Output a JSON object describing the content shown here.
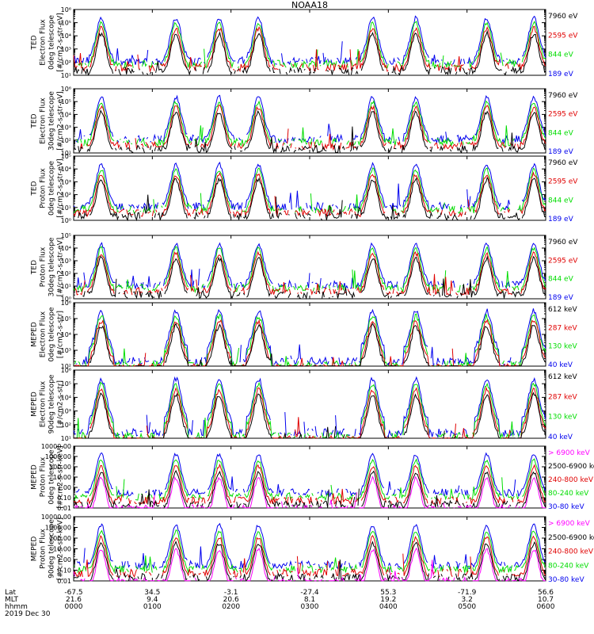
{
  "chart_data": {
    "type": "line",
    "title": "NOAA18",
    "date_label": "2019 Dec 30",
    "time_axis": {
      "rows": [
        {
          "label": "Lat",
          "values": [
            "-67.5",
            "34.5",
            "-3.1",
            "-27.4",
            "55.3",
            "-71.9",
            "56.6"
          ]
        },
        {
          "label": "MLT",
          "values": [
            "21.6",
            "9.4",
            "20.6",
            "8.1",
            "19.2",
            "3.2",
            "10.7"
          ]
        },
        {
          "label": "hhmm",
          "values": [
            "0000",
            "0100",
            "0200",
            "0300",
            "0400",
            "0500",
            "0600"
          ]
        }
      ],
      "range_hours": [
        0,
        6
      ]
    },
    "panels": [
      {
        "ylabel": [
          "TED",
          "Electron Flux",
          "0deg telescope",
          "[#/cm2-s-str-eV]"
        ],
        "scale": "log",
        "ylim": [
          10,
          1000000
        ],
        "ticks": [
          "10¹",
          "10²",
          "10³",
          "10⁴",
          "10⁵",
          "10⁶"
        ],
        "series": [
          {
            "name": "7960 eV",
            "color": "#000000"
          },
          {
            "name": "2595 eV",
            "color": "#e00000"
          },
          {
            "name": "844 eV",
            "color": "#00dd00"
          },
          {
            "name": "189 eV",
            "color": "#0000ee"
          }
        ]
      },
      {
        "ylabel": [
          "TED",
          "Electron Flux",
          "30deg telescope",
          "[#/cm2-s-str-eV]"
        ],
        "scale": "log",
        "ylim": [
          10,
          1000000
        ],
        "ticks": [
          "10¹",
          "10²",
          "10³",
          "10⁴",
          "10⁵",
          "10⁶"
        ],
        "series": [
          {
            "name": "7960 eV",
            "color": "#000000"
          },
          {
            "name": "2595 eV",
            "color": "#e00000"
          },
          {
            "name": "844 eV",
            "color": "#00dd00"
          },
          {
            "name": "189 eV",
            "color": "#0000ee"
          }
        ]
      },
      {
        "ylabel": [
          "TED",
          "Proton Flux",
          "0deg telescope",
          "[#/cm2-s-str-eV]"
        ],
        "scale": "log",
        "ylim": [
          1,
          100000
        ],
        "ticks": [
          "10⁰",
          "10¹",
          "10²",
          "10³",
          "10⁴",
          "10⁵"
        ],
        "series": [
          {
            "name": "7960 eV",
            "color": "#000000"
          },
          {
            "name": "2595 eV",
            "color": "#e00000"
          },
          {
            "name": "844 eV",
            "color": "#00dd00"
          },
          {
            "name": "189 eV",
            "color": "#0000ee"
          }
        ]
      },
      {
        "ylabel": [
          "TED",
          "Proton Flux",
          "30deg telescope",
          "[#/cm2-s-str-eV]"
        ],
        "scale": "log",
        "ylim": [
          1,
          100000
        ],
        "ticks": [
          "10⁰",
          "10¹",
          "10²",
          "10³",
          "10⁴",
          "10⁵"
        ],
        "series": [
          {
            "name": "7960 eV",
            "color": "#000000"
          },
          {
            "name": "2595 eV",
            "color": "#e00000"
          },
          {
            "name": "844 eV",
            "color": "#00dd00"
          },
          {
            "name": "189 eV",
            "color": "#0000ee"
          }
        ]
      },
      {
        "ylabel": [
          "MEPED",
          "Electron Flux",
          "0deg telescope",
          "[#/cm2-s-str]"
        ],
        "scale": "log",
        "ylim": [
          100,
          1000000
        ],
        "ticks": [
          "10²",
          "10³",
          "10⁴",
          "10⁵",
          "10⁶"
        ],
        "series": [
          {
            "name": "612 keV",
            "color": "#000000"
          },
          {
            "name": "287 keV",
            "color": "#e00000"
          },
          {
            "name": "130 keV",
            "color": "#00dd00"
          },
          {
            "name": "40 keV",
            "color": "#0000ee"
          }
        ]
      },
      {
        "ylabel": [
          "MEPED",
          "Electron Flux",
          "90deg telescope",
          "[#/cm2-s-str]"
        ],
        "scale": "log",
        "ylim": [
          10,
          1000000
        ],
        "ticks": [
          "10¹",
          "10²",
          "10³",
          "10⁴",
          "10⁵",
          "10⁶"
        ],
        "series": [
          {
            "name": "612 keV",
            "color": "#000000"
          },
          {
            "name": "287 keV",
            "color": "#e00000"
          },
          {
            "name": "130 keV",
            "color": "#00dd00"
          },
          {
            "name": "40 keV",
            "color": "#0000ee"
          }
        ]
      },
      {
        "ylabel": [
          "MEPED",
          "Proton Flux",
          "0deg telescope",
          "[#/cm2-s-str-keV]"
        ],
        "scale": "log",
        "ylim": [
          0.01,
          10000
        ],
        "ticks": [
          "0.01",
          "0.10",
          "1.00",
          "10.00",
          "100.00",
          "1000.00",
          "10000.00"
        ],
        "series": [
          {
            "name": "> 6900 keV",
            "color": "#ff00ff"
          },
          {
            "name": "2500-6900 keV",
            "color": "#000000"
          },
          {
            "name": "240-800 keV",
            "color": "#e00000"
          },
          {
            "name": "80-240 keV",
            "color": "#00dd00"
          },
          {
            "name": "30-80 keV",
            "color": "#0000ee"
          }
        ]
      },
      {
        "ylabel": [
          "MEPED",
          "Proton Flux",
          "90deg telescope",
          "[#/cm2-s-str-keV]"
        ],
        "scale": "log",
        "ylim": [
          0.01,
          10000
        ],
        "ticks": [
          "0.01",
          "0.10",
          "1.00",
          "10.00",
          "100.00",
          "1000.00",
          "10000.00"
        ],
        "series": [
          {
            "name": "> 6900 keV",
            "color": "#ff00ff"
          },
          {
            "name": "2500-6900 keV",
            "color": "#000000"
          },
          {
            "name": "240-800 keV",
            "color": "#e00000"
          },
          {
            "name": "80-240 keV",
            "color": "#00dd00"
          },
          {
            "name": "30-80 keV",
            "color": "#0000ee"
          }
        ]
      }
    ],
    "pass_centers_hours": [
      0.35,
      1.3,
      1.85,
      2.35,
      3.8,
      4.35,
      5.25,
      5.85
    ],
    "grid": false
  }
}
